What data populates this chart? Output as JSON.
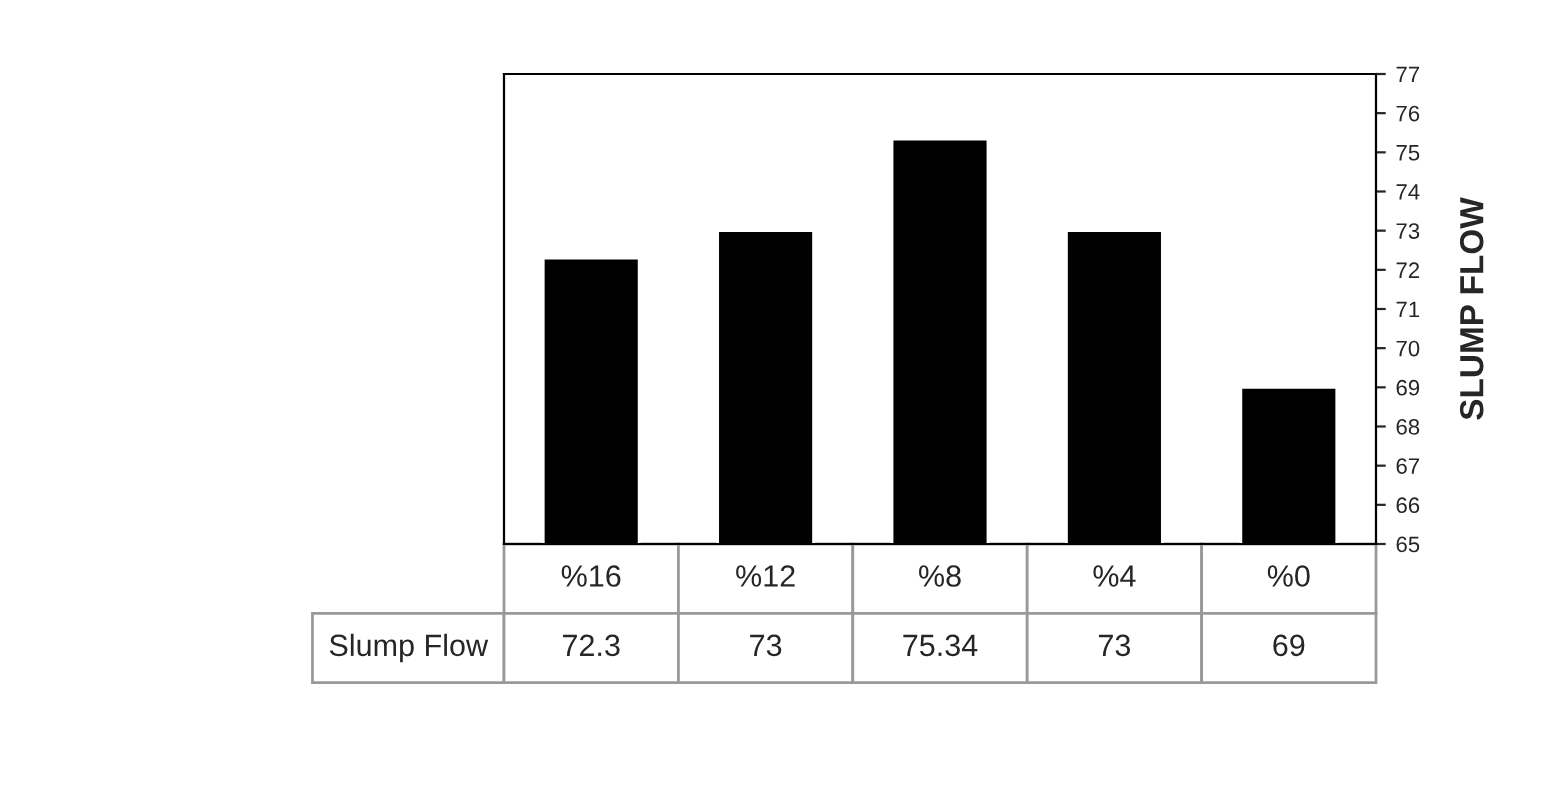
{
  "chart_data": {
    "type": "bar",
    "categories": [
      "%16",
      "%12",
      "%8",
      "%4",
      "%0"
    ],
    "series": [
      {
        "name": "Slump Flow",
        "color": "#000000",
        "values": [
          72.3,
          73,
          75.34,
          73,
          69
        ]
      }
    ],
    "ylabel": "SLUMP FLOW",
    "ylim": [
      65,
      77
    ],
    "yticks": [
      65,
      66,
      67,
      68,
      69,
      70,
      71,
      72,
      73,
      74,
      75,
      76,
      77
    ],
    "data_labels": true,
    "grid": false,
    "legend": false
  }
}
